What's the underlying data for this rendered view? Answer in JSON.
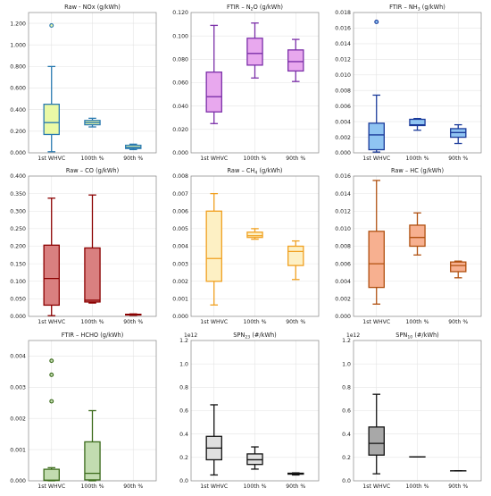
{
  "chart_data": [
    {
      "type": "box",
      "title": "Raw - NOx (g/kWh)",
      "categories": [
        "1st WHVC",
        "100th %",
        "90th %"
      ],
      "color": "#2a7ab0",
      "fill": "#eaf9a6",
      "ylim": [
        0,
        1.3
      ],
      "yticks": [
        0,
        0.2,
        0.4,
        0.6,
        0.8,
        1.0,
        1.2
      ],
      "ytick_labels": [
        "0.000",
        "0.200",
        "0.400",
        "0.600",
        "0.800",
        "1.000",
        "1.200"
      ],
      "boxes": [
        {
          "whislo": 0.01,
          "q1": 0.17,
          "med": 0.28,
          "q3": 0.45,
          "whishi": 0.8,
          "fliers": [
            1.18
          ]
        },
        {
          "whislo": 0.24,
          "q1": 0.26,
          "med": 0.28,
          "q3": 0.3,
          "whishi": 0.32,
          "fliers": []
        },
        {
          "whislo": 0.03,
          "q1": 0.04,
          "med": 0.05,
          "q3": 0.07,
          "whishi": 0.08,
          "fliers": []
        }
      ]
    },
    {
      "type": "box",
      "title_parts": [
        "FTIR – N",
        "2",
        "O (g/kWh)"
      ],
      "categories": [
        "1st WHVC",
        "100th %",
        "90th %"
      ],
      "color": "#7b2fa8",
      "fill": "#e8a8ee",
      "ylim": [
        0,
        0.12
      ],
      "yticks": [
        0,
        0.02,
        0.04,
        0.06,
        0.08,
        0.1,
        0.12
      ],
      "ytick_labels": [
        "0.000",
        "0.020",
        "0.040",
        "0.060",
        "0.080",
        "0.100",
        "0.120"
      ],
      "boxes": [
        {
          "whislo": 0.025,
          "q1": 0.035,
          "med": 0.048,
          "q3": 0.069,
          "whishi": 0.109,
          "fliers": []
        },
        {
          "whislo": 0.064,
          "q1": 0.075,
          "med": 0.085,
          "q3": 0.098,
          "whishi": 0.111,
          "fliers": []
        },
        {
          "whislo": 0.061,
          "q1": 0.07,
          "med": 0.078,
          "q3": 0.088,
          "whishi": 0.097,
          "fliers": []
        }
      ]
    },
    {
      "type": "box",
      "title_parts": [
        "FTIR – NH",
        "3",
        " (g/kWh)"
      ],
      "categories": [
        "1st WHVC",
        "100th %",
        "90th %"
      ],
      "color": "#1a3a9a",
      "fill": "#8fc4f2",
      "ylim": [
        0,
        0.018
      ],
      "yticks": [
        0,
        0.002,
        0.004,
        0.006,
        0.008,
        0.01,
        0.012,
        0.014,
        0.016,
        0.018
      ],
      "ytick_labels": [
        "0.000",
        "0.002",
        "0.004",
        "0.006",
        "0.008",
        "0.010",
        "0.012",
        "0.014",
        "0.016",
        "0.018"
      ],
      "boxes": [
        {
          "whislo": 0.0001,
          "q1": 0.0004,
          "med": 0.0023,
          "q3": 0.0038,
          "whishi": 0.0074,
          "fliers": [
            0.0168
          ]
        },
        {
          "whislo": 0.0029,
          "q1": 0.0035,
          "med": 0.0036,
          "q3": 0.0043,
          "whishi": 0.0044,
          "fliers": []
        },
        {
          "whislo": 0.0012,
          "q1": 0.002,
          "med": 0.0026,
          "q3": 0.0031,
          "whishi": 0.0036,
          "fliers": []
        }
      ]
    },
    {
      "type": "box",
      "title": "Raw – CO (g/kWh)",
      "categories": [
        "1st WHVC",
        "100th %",
        "90th %"
      ],
      "color": "#8b0000",
      "fill": "#d98080",
      "ylim": [
        0,
        0.4
      ],
      "yticks": [
        0,
        0.05,
        0.1,
        0.15,
        0.2,
        0.25,
        0.3,
        0.35,
        0.4
      ],
      "ytick_labels": [
        "0.000",
        "0.050",
        "0.100",
        "0.150",
        "0.200",
        "0.250",
        "0.300",
        "0.350",
        "0.400"
      ],
      "boxes": [
        {
          "whislo": 0.002,
          "q1": 0.032,
          "med": 0.108,
          "q3": 0.203,
          "whishi": 0.337,
          "fliers": []
        },
        {
          "whislo": 0.038,
          "q1": 0.041,
          "med": 0.046,
          "q3": 0.195,
          "whishi": 0.346,
          "fliers": []
        },
        {
          "whislo": 0.003,
          "q1": 0.004,
          "med": 0.005,
          "q3": 0.006,
          "whishi": 0.007,
          "fliers": []
        }
      ]
    },
    {
      "type": "box",
      "title_parts": [
        "Raw – CH",
        "4",
        " (g/kWh)"
      ],
      "categories": [
        "1st WHVC",
        "100th %",
        "90th %"
      ],
      "color": "#f0a020",
      "fill": "#fdf0c4",
      "ylim": [
        0,
        0.008
      ],
      "yticks": [
        0,
        0.001,
        0.002,
        0.003,
        0.004,
        0.005,
        0.006,
        0.007,
        0.008
      ],
      "ytick_labels": [
        "0.000",
        "0.001",
        "0.002",
        "0.003",
        "0.004",
        "0.005",
        "0.006",
        "0.007",
        "0.008"
      ],
      "boxes": [
        {
          "whislo": 0.00065,
          "q1": 0.002,
          "med": 0.0033,
          "q3": 0.006,
          "whishi": 0.007,
          "fliers": []
        },
        {
          "whislo": 0.0044,
          "q1": 0.0045,
          "med": 0.0046,
          "q3": 0.0048,
          "whishi": 0.005,
          "fliers": []
        },
        {
          "whislo": 0.0021,
          "q1": 0.0029,
          "med": 0.0037,
          "q3": 0.004,
          "whishi": 0.0043,
          "fliers": []
        }
      ]
    },
    {
      "type": "box",
      "title": "Raw – HC (g/kWh)",
      "categories": [
        "1st WHVC",
        "100th %",
        "90th %"
      ],
      "color": "#b05010",
      "fill": "#f7b090",
      "ylim": [
        0,
        0.016
      ],
      "yticks": [
        0,
        0.002,
        0.004,
        0.006,
        0.008,
        0.01,
        0.012,
        0.014,
        0.016
      ],
      "ytick_labels": [
        "0.000",
        "0.002",
        "0.004",
        "0.006",
        "0.008",
        "0.010",
        "0.012",
        "0.014",
        "0.016"
      ],
      "boxes": [
        {
          "whislo": 0.0014,
          "q1": 0.0033,
          "med": 0.006,
          "q3": 0.0097,
          "whishi": 0.0155,
          "fliers": []
        },
        {
          "whislo": 0.007,
          "q1": 0.008,
          "med": 0.009,
          "q3": 0.0104,
          "whishi": 0.0118,
          "fliers": []
        },
        {
          "whislo": 0.0044,
          "q1": 0.0051,
          "med": 0.0058,
          "q3": 0.0062,
          "whishi": 0.0063,
          "fliers": []
        }
      ]
    },
    {
      "type": "box",
      "title": "FTIR – HCHO (g/kWh)",
      "categories": [
        "1st WHVC",
        "100th %",
        "90th %"
      ],
      "color": "#3a6a1a",
      "fill": "#c2dcb0",
      "ylim": [
        0,
        0.0045
      ],
      "yticks": [
        0,
        0.001,
        0.002,
        0.003,
        0.004
      ],
      "ytick_labels": [
        "0.000",
        "0.001",
        "0.002",
        "0.003",
        "0.004"
      ],
      "boxes": [
        {
          "whislo": 0.0,
          "q1": 1e-05,
          "med": 2e-05,
          "q3": 0.00037,
          "whishi": 0.00042,
          "fliers": [
            0.00255,
            0.0034,
            0.00385
          ]
        },
        {
          "whislo": 0.0,
          "q1": 3e-05,
          "med": 0.00024,
          "q3": 0.00125,
          "whishi": 0.00225,
          "fliers": []
        },
        null
      ]
    },
    {
      "type": "box",
      "title_parts": [
        "SPN",
        "23",
        " (#/kWh)"
      ],
      "categories": [
        "1st WHVC",
        "100th %",
        "90th %"
      ],
      "color": "#111111",
      "fill": "#e0e0e0",
      "multiplier": "1e12",
      "ylim": [
        0,
        1.2
      ],
      "yticks": [
        0,
        0.2,
        0.4,
        0.6,
        0.8,
        1.0,
        1.2
      ],
      "ytick_labels": [
        "0.0",
        "0.2",
        "0.4",
        "0.6",
        "0.8",
        "1.0",
        "1.2"
      ],
      "boxes": [
        {
          "whislo": 0.05,
          "q1": 0.18,
          "med": 0.28,
          "q3": 0.38,
          "whishi": 0.65,
          "fliers": []
        },
        {
          "whislo": 0.1,
          "q1": 0.14,
          "med": 0.18,
          "q3": 0.23,
          "whishi": 0.29,
          "fliers": []
        },
        {
          "whislo": 0.05,
          "q1": 0.057,
          "med": 0.06,
          "q3": 0.065,
          "whishi": 0.068,
          "fliers": []
        }
      ]
    },
    {
      "type": "box",
      "title_parts": [
        "SPN",
        "10",
        " (#/kWh)"
      ],
      "categories": [
        "1st WHVC",
        "100th %",
        "90th %"
      ],
      "color": "#111111",
      "fill": "#a8a8a8",
      "multiplier": "1e12",
      "ylim": [
        0,
        1.2
      ],
      "yticks": [
        0,
        0.2,
        0.4,
        0.6,
        0.8,
        1.0,
        1.2
      ],
      "ytick_labels": [
        "0.0",
        "0.2",
        "0.4",
        "0.6",
        "0.8",
        "1.0",
        "1.2"
      ],
      "boxes": [
        {
          "whislo": 0.06,
          "q1": 0.22,
          "med": 0.32,
          "q3": 0.46,
          "whishi": 0.74,
          "fliers": []
        },
        {
          "whislo": 0.205,
          "q1": 0.205,
          "med": 0.205,
          "q3": 0.205,
          "whishi": 0.205,
          "fliers": []
        },
        {
          "whislo": 0.085,
          "q1": 0.085,
          "med": 0.085,
          "q3": 0.085,
          "whishi": 0.085,
          "fliers": []
        }
      ]
    }
  ]
}
